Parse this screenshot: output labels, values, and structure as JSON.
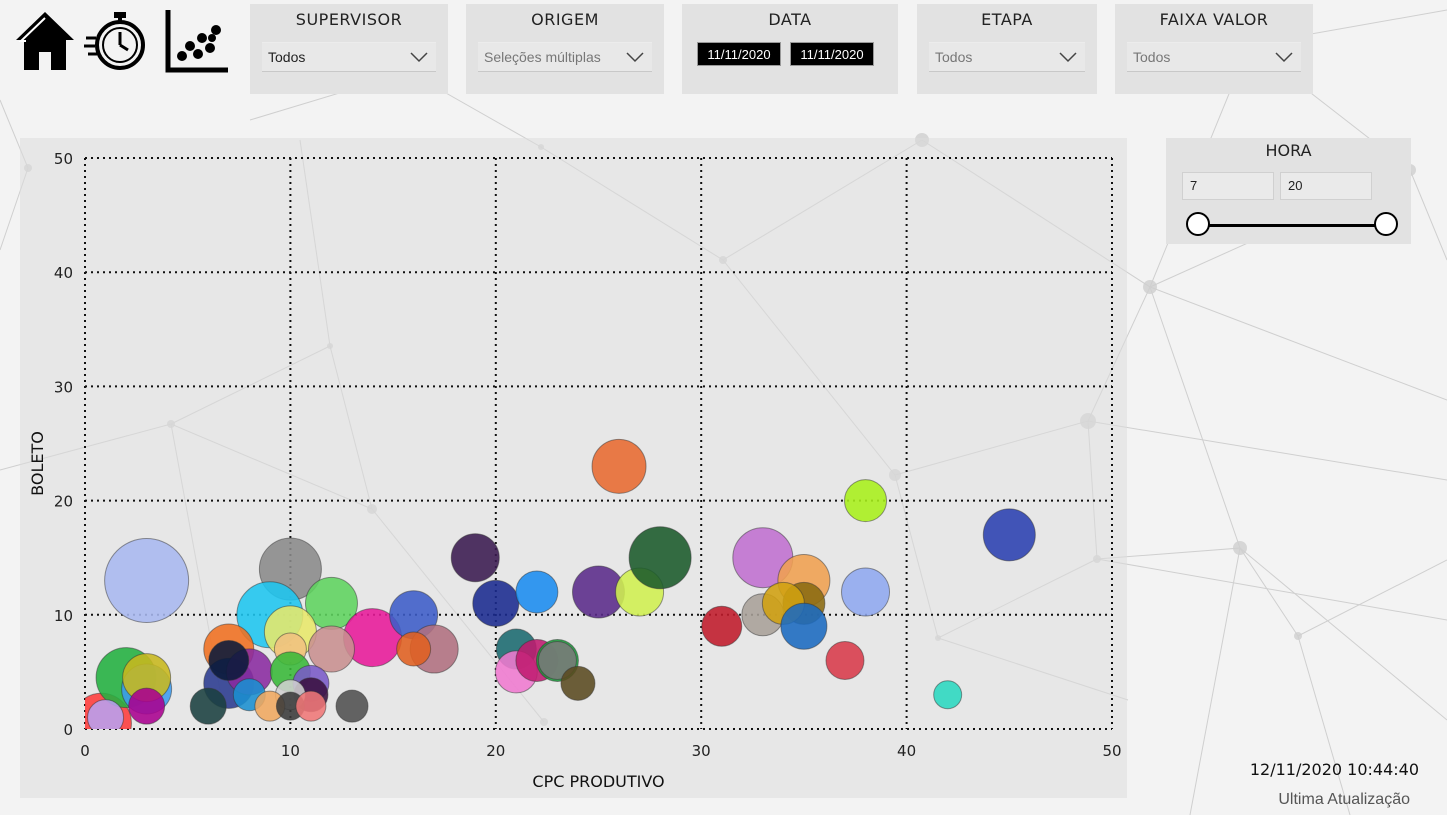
{
  "nav": {
    "icons": [
      "home-icon",
      "stopwatch-icon",
      "scatter-chart-icon"
    ]
  },
  "filters": {
    "supervisor": {
      "title": "SUPERVISOR",
      "value": "Todos"
    },
    "origem": {
      "title": "ORIGEM",
      "value": "Seleções múltiplas"
    },
    "data": {
      "title": "DATA",
      "start": "11/11/2020",
      "end": "11/11/2020"
    },
    "etapa": {
      "title": "ETAPA",
      "value": "Todos"
    },
    "faixa_valor": {
      "title": "FAIXA VALOR",
      "value": "Todos"
    }
  },
  "hora": {
    "title": "HORA",
    "min": "7",
    "max": "20"
  },
  "footer": {
    "timestamp": "12/11/2020 10:44:40",
    "update_label": "Ultima Atualização"
  },
  "colors": {
    "panel": "#e2e2e2",
    "date_bg": "#000000"
  },
  "chart_data": {
    "type": "scatter",
    "xlabel": "CPC PRODUTIVO",
    "ylabel": "BOLETO",
    "xlim": [
      0,
      50
    ],
    "ylim": [
      0,
      50
    ],
    "xticks": [
      0,
      10,
      20,
      30,
      40,
      50
    ],
    "yticks": [
      0,
      10,
      20,
      30,
      40,
      50
    ],
    "grid": true,
    "points": [
      {
        "x": 0.8,
        "y": 0.5,
        "r": 30,
        "color": "#ff3b3b"
      },
      {
        "x": 3,
        "y": 13,
        "r": 42,
        "color": "#a8b8f0"
      },
      {
        "x": 10,
        "y": 14,
        "r": 31,
        "color": "#8a8a8a"
      },
      {
        "x": 9,
        "y": 10,
        "r": 33,
        "color": "#1ec6f0"
      },
      {
        "x": 12,
        "y": 11,
        "r": 26,
        "color": "#5ed45e"
      },
      {
        "x": 10,
        "y": 8.5,
        "r": 26,
        "color": "#e8e86a"
      },
      {
        "x": 14,
        "y": 8,
        "r": 29,
        "color": "#e8199a"
      },
      {
        "x": 16,
        "y": 10,
        "r": 24,
        "color": "#3c5cc8"
      },
      {
        "x": 17,
        "y": 7,
        "r": 24,
        "color": "#b07080"
      },
      {
        "x": 16,
        "y": 7,
        "r": 17,
        "color": "#e06020"
      },
      {
        "x": 12,
        "y": 7,
        "r": 23,
        "color": "#c89090"
      },
      {
        "x": 7,
        "y": 7,
        "r": 25,
        "color": "#f07020"
      },
      {
        "x": 10,
        "y": 7,
        "r": 16,
        "color": "#f0c080"
      },
      {
        "x": 2,
        "y": 4.5,
        "r": 30,
        "color": "#22b040"
      },
      {
        "x": 3,
        "y": 3.5,
        "r": 25,
        "color": "#3c9cf0"
      },
      {
        "x": 3,
        "y": 4.5,
        "r": 24,
        "color": "#c8b81e"
      },
      {
        "x": 3,
        "y": 2,
        "r": 18,
        "color": "#aa0090"
      },
      {
        "x": 1,
        "y": 1,
        "r": 18,
        "color": "#b8a0f0"
      },
      {
        "x": 7,
        "y": 4,
        "r": 25,
        "color": "#2a3a90"
      },
      {
        "x": 8,
        "y": 5,
        "r": 23,
        "color": "#8a2aa0"
      },
      {
        "x": 7,
        "y": 6,
        "r": 20,
        "color": "#0a1a3a"
      },
      {
        "x": 10,
        "y": 5,
        "r": 20,
        "color": "#38b838"
      },
      {
        "x": 11,
        "y": 4,
        "r": 18,
        "color": "#7a5ac8"
      },
      {
        "x": 11,
        "y": 3,
        "r": 17,
        "color": "#3a1040"
      },
      {
        "x": 8,
        "y": 3,
        "r": 16,
        "color": "#1a90d0"
      },
      {
        "x": 10,
        "y": 3,
        "r": 15,
        "color": "#d0d0d0"
      },
      {
        "x": 6,
        "y": 2,
        "r": 18,
        "color": "#1a4040"
      },
      {
        "x": 9,
        "y": 2,
        "r": 15,
        "color": "#f0a860"
      },
      {
        "x": 10,
        "y": 2,
        "r": 14,
        "color": "#3a3a3a"
      },
      {
        "x": 11,
        "y": 2,
        "r": 15,
        "color": "#f07878"
      },
      {
        "x": 13,
        "y": 2,
        "r": 16,
        "color": "#505050"
      },
      {
        "x": 19,
        "y": 15,
        "r": 24,
        "color": "#3a1a50"
      },
      {
        "x": 20,
        "y": 11,
        "r": 23,
        "color": "#1a2a90"
      },
      {
        "x": 22,
        "y": 12,
        "r": 21,
        "color": "#1a8cf0"
      },
      {
        "x": 21,
        "y": 7,
        "r": 20,
        "color": "#1a6a70"
      },
      {
        "x": 21,
        "y": 5,
        "r": 21,
        "color": "#f07ad0"
      },
      {
        "x": 22,
        "y": 6,
        "r": 21,
        "color": "#c01a70"
      },
      {
        "x": 23,
        "y": 6,
        "r": 21,
        "color": "#1a9a3a"
      },
      {
        "x": 23,
        "y": 6,
        "r": 19,
        "color": "#7a7a7a"
      },
      {
        "x": 24,
        "y": 4,
        "r": 17,
        "color": "#5a4a20"
      },
      {
        "x": 25,
        "y": 12,
        "r": 26,
        "color": "#5a2a8a"
      },
      {
        "x": 27,
        "y": 12,
        "r": 24,
        "color": "#d0f050"
      },
      {
        "x": 28,
        "y": 15,
        "r": 31,
        "color": "#1a5a2a"
      },
      {
        "x": 26,
        "y": 23,
        "r": 27,
        "color": "#e86a30"
      },
      {
        "x": 31,
        "y": 9,
        "r": 20,
        "color": "#c01a2a"
      },
      {
        "x": 33,
        "y": 15,
        "r": 30,
        "color": "#c070d0"
      },
      {
        "x": 35,
        "y": 13,
        "r": 26,
        "color": "#f0a050"
      },
      {
        "x": 33,
        "y": 10,
        "r": 21,
        "color": "#a8a098"
      },
      {
        "x": 35,
        "y": 11,
        "r": 21,
        "color": "#8a6a10"
      },
      {
        "x": 34,
        "y": 11,
        "r": 21,
        "color": "#d0a010"
      },
      {
        "x": 35,
        "y": 9,
        "r": 23,
        "color": "#1a6ac0"
      },
      {
        "x": 37,
        "y": 6,
        "r": 19,
        "color": "#d83a4a"
      },
      {
        "x": 38,
        "y": 12,
        "r": 24,
        "color": "#90a8f0"
      },
      {
        "x": 38,
        "y": 20,
        "r": 21,
        "color": "#a8f01a"
      },
      {
        "x": 45,
        "y": 17,
        "r": 26,
        "color": "#2a40b0"
      },
      {
        "x": 42,
        "y": 3,
        "r": 14,
        "color": "#2ad8c0"
      }
    ]
  }
}
